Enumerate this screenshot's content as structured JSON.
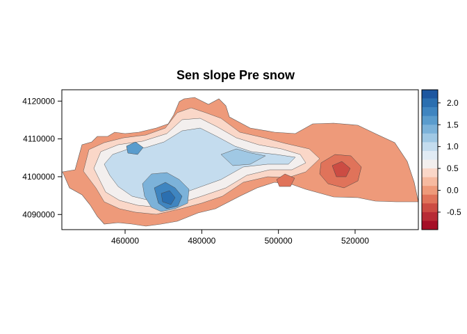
{
  "map": {
    "title": "Sen slope Pre snow",
    "x_ticks": [
      "460000",
      "480000",
      "500000",
      "520000"
    ],
    "y_ticks": [
      "4090000",
      "4100000",
      "4110000",
      "4120000"
    ],
    "legend": {
      "tick_labels": [
        "2.0",
        "1.5",
        "1.0",
        "0.5",
        "0.0",
        "-0.5"
      ],
      "colors": [
        "#1d57a0",
        "#2b6fb0",
        "#3f85c0",
        "#5a9ccd",
        "#7cb2d9",
        "#a0c8e4",
        "#c4dcee",
        "#e1ebf4",
        "#f3efee",
        "#fad7c8",
        "#f6baa0",
        "#ee9a7a",
        "#e0735a",
        "#cc4c43",
        "#b82c35",
        "#a50f26"
      ]
    }
  },
  "chart_data": {
    "type": "heatmap",
    "title": "Sen slope Pre snow",
    "xlabel": "",
    "ylabel": "",
    "xlim": [
      443500,
      536500
    ],
    "ylim": [
      4086000,
      4123000
    ],
    "x_ticks": [
      460000,
      480000,
      500000,
      520000
    ],
    "y_ticks": [
      4090000,
      4100000,
      4110000,
      4120000
    ],
    "legend": {
      "position": "right",
      "range": [
        -0.9,
        2.3
      ],
      "breaks_step": 0.2,
      "tick_values": [
        2.0,
        1.5,
        1.0,
        0.5,
        0.0,
        -0.5
      ]
    },
    "grid": false
  }
}
